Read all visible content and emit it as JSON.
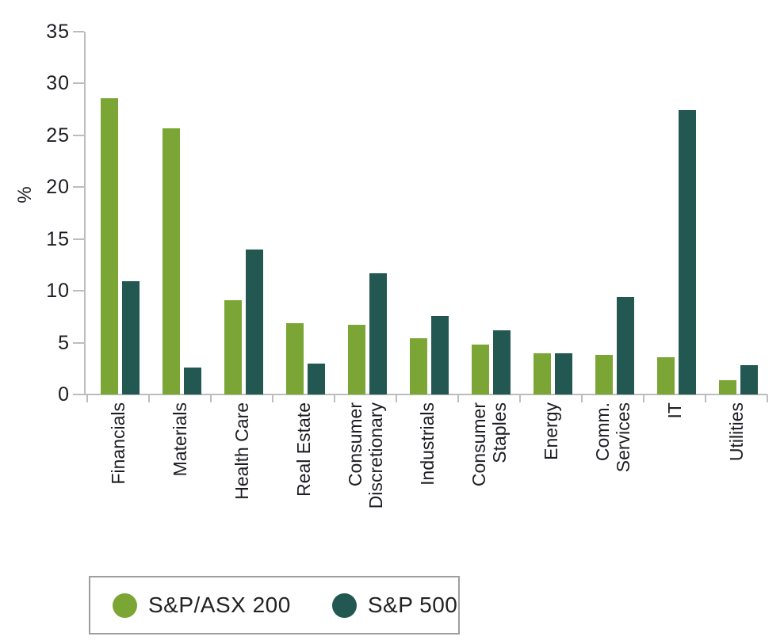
{
  "chart_data": {
    "type": "bar",
    "title": "",
    "xlabel": "",
    "ylabel": "%",
    "ylim": [
      0,
      35
    ],
    "ytick_step": 5,
    "grid": false,
    "legend_position": "bottom-left",
    "categories": [
      "Financials",
      "Materials",
      "Health Care",
      "Real Estate",
      "Consumer Discretionary",
      "Industrials",
      "Consumer Staples",
      "Energy",
      "Comm. Services",
      "IT",
      "Utilities"
    ],
    "category_label_lines": [
      [
        "Financials"
      ],
      [
        "Materials"
      ],
      [
        "Health Care"
      ],
      [
        "Real Estate"
      ],
      [
        "Consumer",
        "Discretionary"
      ],
      [
        "Industrials"
      ],
      [
        "Consumer",
        "Staples"
      ],
      [
        "Energy"
      ],
      [
        "Comm.",
        "Services"
      ],
      [
        "IT"
      ],
      [
        "Utilities"
      ]
    ],
    "series": [
      {
        "name": "S&P/ASX 200",
        "color": "#7ba636",
        "values": [
          28.6,
          25.7,
          9.1,
          6.9,
          6.7,
          5.4,
          4.8,
          4.0,
          3.8,
          3.6,
          1.4
        ]
      },
      {
        "name": "S&P 500",
        "color": "#235852",
        "values": [
          10.9,
          2.6,
          14.0,
          3.0,
          11.7,
          7.6,
          6.2,
          4.0,
          9.4,
          27.4,
          2.8
        ]
      }
    ]
  },
  "colors": {
    "background": "#ffffff",
    "axis": "#bdbdbd",
    "text": "#1c1c22",
    "legend_border": "#9e9e9e"
  }
}
